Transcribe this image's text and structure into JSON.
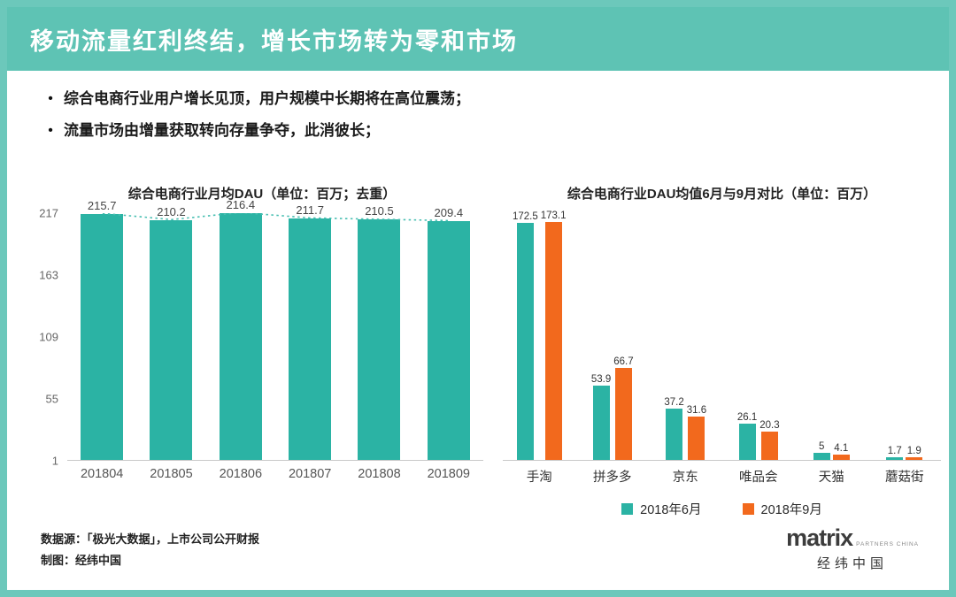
{
  "header": {
    "title": "移动流量红利终结，增长市场转为零和市场"
  },
  "bullets": [
    "综合电商行业用户增长见顶，用户规模中长期将在高位震荡；",
    "流量市场由增量获取转向存量争夺，此消彼长；"
  ],
  "colors": {
    "frame_teal": "#6cc8bb",
    "header_teal": "#5ec3b4",
    "bar_teal": "#2bb3a4",
    "bar_orange": "#f2691d",
    "trend_teal": "#49bfb2"
  },
  "chart_data": [
    {
      "type": "bar",
      "title": "综合电商行业月均DAU（单位：百万；去重）",
      "categories": [
        "201804",
        "201805",
        "201806",
        "201807",
        "201808",
        "201809"
      ],
      "values": [
        215.7,
        210.2,
        216.4,
        211.7,
        210.5,
        209.4
      ],
      "yticks": [
        217,
        163,
        109,
        55,
        1
      ],
      "ylim": [
        1,
        217
      ],
      "bar_color": "#2bb3a4",
      "trendline": "dotted line across bar tops",
      "grid": false,
      "legend_position": "none"
    },
    {
      "type": "bar",
      "title": "综合电商行业DAU均值6月与9月对比（单位：百万）",
      "categories": [
        "手淘",
        "拼多多",
        "京东",
        "唯品会",
        "天猫",
        "蘑菇街"
      ],
      "series": [
        {
          "name": "2018年6月",
          "color": "#2bb3a4",
          "values": [
            172.5,
            53.9,
            37.2,
            26.1,
            5,
            1.7
          ]
        },
        {
          "name": "2018年9月",
          "color": "#f2691d",
          "values": [
            173.1,
            66.7,
            31.6,
            20.3,
            4.1,
            1.9
          ]
        }
      ],
      "ylim": [
        0,
        180
      ],
      "grid": false,
      "legend_position": "bottom"
    }
  ],
  "footer": {
    "line1": "数据源：「极光大数据」，上市公司公开财报",
    "line2": "制图：经纬中国"
  },
  "logo": {
    "name": "matrix",
    "subtitle": "PARTNERS CHINA",
    "chinese": "经纬中国"
  }
}
